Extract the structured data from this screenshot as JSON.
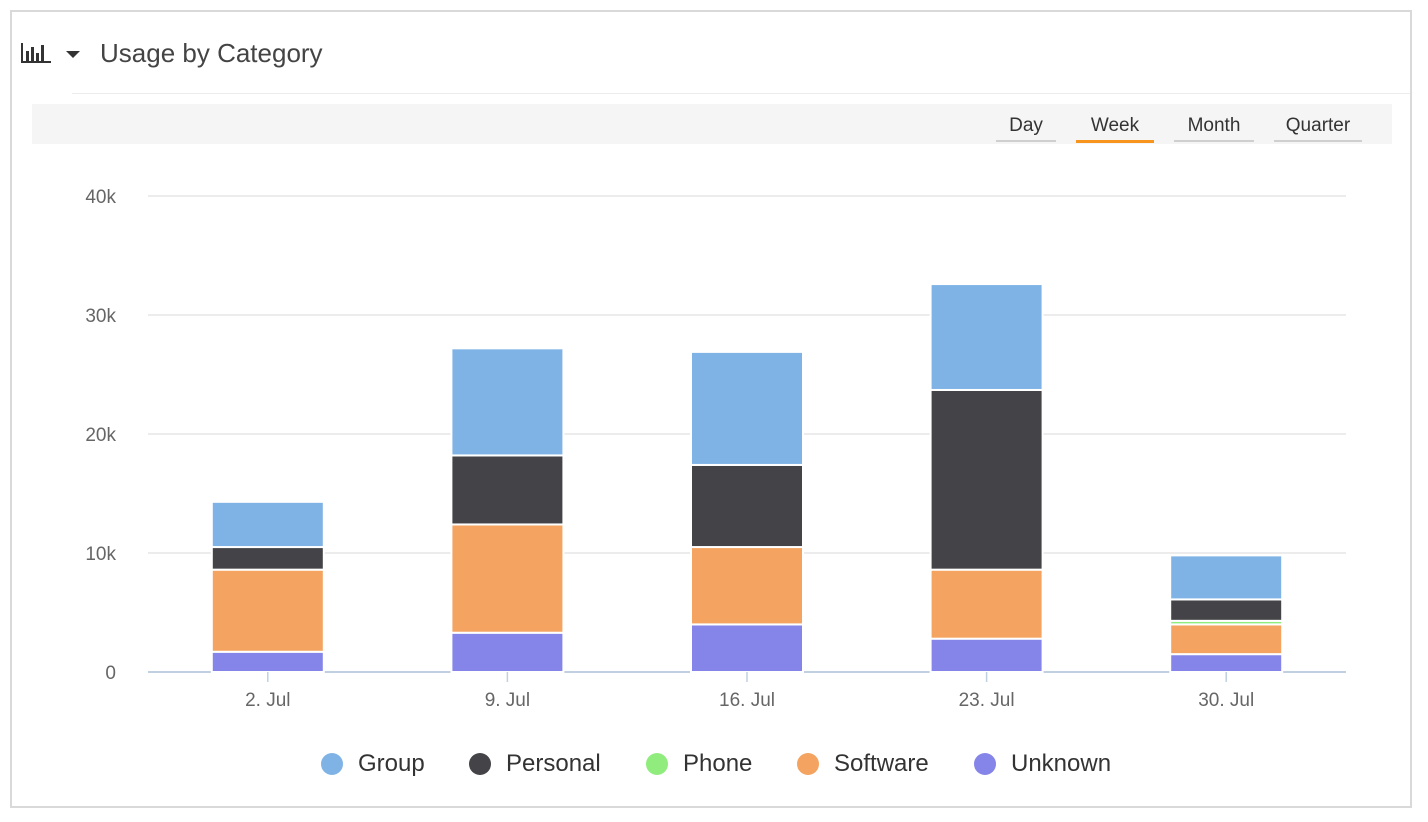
{
  "title": "Usage by Category",
  "toolbar": {
    "buttons": [
      {
        "label": "Day",
        "active": false
      },
      {
        "label": "Week",
        "active": true
      },
      {
        "label": "Month",
        "active": false
      },
      {
        "label": "Quarter",
        "active": false
      }
    ]
  },
  "colors": {
    "Group": "#7fb3e6",
    "Personal": "#444448",
    "Phone": "#90ed7d",
    "Software": "#f4a460",
    "Unknown": "#8585e9",
    "accent": "#f7941d"
  },
  "chart_data": {
    "type": "bar",
    "stacked": true,
    "categories": [
      "2. Jul",
      "9. Jul",
      "16. Jul",
      "23. Jul",
      "30. Jul"
    ],
    "y_ticks": [
      "0",
      "10k",
      "20k",
      "30k",
      "40k"
    ],
    "ylim": [
      0,
      40000
    ],
    "grid": true,
    "legend_position": "bottom",
    "series": [
      {
        "name": "Unknown",
        "values": [
          1700,
          3300,
          4000,
          2800,
          1500
        ]
      },
      {
        "name": "Software",
        "values": [
          6900,
          9100,
          6500,
          5800,
          2500
        ]
      },
      {
        "name": "Phone",
        "values": [
          0,
          0,
          0,
          0,
          300
        ]
      },
      {
        "name": "Personal",
        "values": [
          1900,
          5800,
          6900,
          15100,
          1800
        ]
      },
      {
        "name": "Group",
        "values": [
          3800,
          9000,
          9500,
          8900,
          3700
        ]
      }
    ]
  },
  "legend": {
    "items": [
      {
        "label": "Group",
        "key": "Group"
      },
      {
        "label": "Personal",
        "key": "Personal"
      },
      {
        "label": "Phone",
        "key": "Phone"
      },
      {
        "label": "Software",
        "key": "Software"
      },
      {
        "label": "Unknown",
        "key": "Unknown"
      }
    ]
  }
}
